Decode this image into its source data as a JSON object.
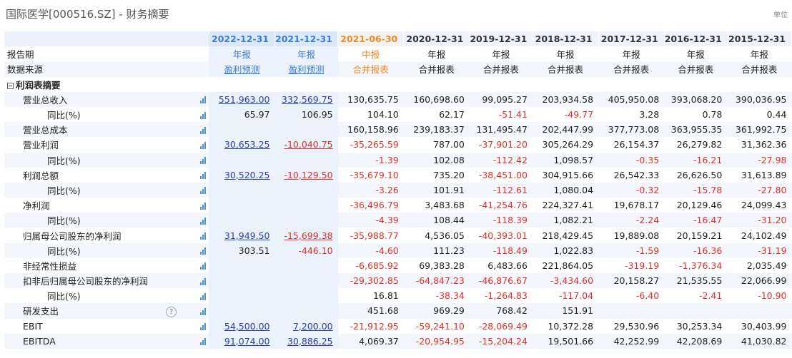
{
  "window": {
    "title": "国际医学[000516.SZ] - 财务摘要",
    "unit": "单位"
  },
  "header": {
    "columns": [
      "2022-12-31",
      "2021-12-31",
      "2021-06-30",
      "2020-12-31",
      "2019-12-31",
      "2018-12-31",
      "2017-12-31",
      "2016-12-31",
      "2015-12-31"
    ]
  },
  "meta_rows": [
    {
      "label": "报告期",
      "values": [
        "年报",
        "年报",
        "中报",
        "年报",
        "年报",
        "年报",
        "年报",
        "年报",
        "年报"
      ]
    },
    {
      "label": "数据来源",
      "values": [
        "盈利预测",
        "盈利预测",
        "合并报表",
        "合并报表",
        "合并报表",
        "合并报表",
        "合并报表",
        "合并报表",
        "合并报表"
      ]
    }
  ],
  "section": {
    "label": "利润表摘要",
    "collapse_symbol": "−"
  },
  "rows": [
    {
      "label": "营业总收入",
      "indent": 1,
      "values": [
        "551,963.00",
        "332,569.75",
        "130,635.75",
        "160,698.60",
        "99,095.27",
        "203,934.58",
        "405,950.08",
        "393,068.20",
        "390,036.95"
      ]
    },
    {
      "label": "同比(%)",
      "indent": 2,
      "values": [
        "65.97",
        "106.95",
        "104.10",
        "62.17",
        "-51.41",
        "-49.77",
        "3.28",
        "0.78",
        "0.44"
      ]
    },
    {
      "label": "营业总成本",
      "indent": 1,
      "values": [
        "",
        "",
        "160,158.96",
        "239,183.37",
        "131,495.47",
        "202,447.99",
        "377,773.08",
        "363,955.35",
        "361,992.75"
      ]
    },
    {
      "label": "营业利润",
      "indent": 1,
      "values": [
        "30,653.25",
        "-10,040.75",
        "-35,265.59",
        "787.00",
        "-37,901.20",
        "305,264.29",
        "26,154.37",
        "26,279.82",
        "31,362.36"
      ]
    },
    {
      "label": "同比(%)",
      "indent": 2,
      "values": [
        "",
        "",
        "-1.39",
        "102.08",
        "-112.42",
        "1,098.57",
        "-0.35",
        "-16.21",
        "-27.98"
      ]
    },
    {
      "label": "利润总额",
      "indent": 1,
      "values": [
        "30,520.25",
        "-10,129.50",
        "-35,679.10",
        "735.20",
        "-38,451.00",
        "304,915.66",
        "26,542.33",
        "26,626.50",
        "31,613.89"
      ]
    },
    {
      "label": "同比(%)",
      "indent": 2,
      "values": [
        "",
        "",
        "-3.26",
        "101.91",
        "-112.61",
        "1,080.04",
        "-0.32",
        "-15.78",
        "-27.80"
      ]
    },
    {
      "label": "净利润",
      "indent": 1,
      "values": [
        "",
        "",
        "-36,496.79",
        "3,483.68",
        "-41,254.76",
        "224,327.41",
        "19,678.17",
        "20,129.46",
        "24,099.43"
      ]
    },
    {
      "label": "同比(%)",
      "indent": 2,
      "values": [
        "",
        "",
        "-4.39",
        "108.44",
        "-118.39",
        "1,082.21",
        "-2.24",
        "-16.47",
        "-31.20"
      ]
    },
    {
      "label": "归属母公司股东的净利润",
      "indent": 1,
      "values": [
        "31,949.50",
        "-15,699.38",
        "-35,988.77",
        "4,536.05",
        "-40,393.01",
        "218,429.45",
        "19,889.08",
        "20,159.21",
        "24,102.49"
      ]
    },
    {
      "label": "同比(%)",
      "indent": 2,
      "values": [
        "303.51",
        "-446.10",
        "-4.60",
        "111.23",
        "-118.49",
        "1,022.83",
        "-1.59",
        "-16.36",
        "-31.19"
      ]
    },
    {
      "label": "非经常性损益",
      "indent": 1,
      "values": [
        "",
        "",
        "-6,685.92",
        "69,383.28",
        "6,483.66",
        "221,864.05",
        "-319.19",
        "-1,376.34",
        "2,035.49"
      ]
    },
    {
      "label": "扣非后归属母公司股东的净利润",
      "indent": 1,
      "values": [
        "",
        "",
        "-29,302.85",
        "-64,847.23",
        "-46,876.67",
        "-3,434.60",
        "20,158.27",
        "21,535.55",
        "22,066.99"
      ]
    },
    {
      "label": "同比(%)",
      "indent": 2,
      "values": [
        "",
        "",
        "16.81",
        "-38.34",
        "-1,264.83",
        "-117.04",
        "-6.40",
        "-2.41",
        "-10.90"
      ]
    },
    {
      "label": "研发支出",
      "indent": 1,
      "help": "?",
      "values": [
        "",
        "",
        "451.68",
        "969.29",
        "768.42",
        "151.91",
        "",
        "",
        ""
      ]
    },
    {
      "label": "EBIT",
      "indent": 1,
      "values": [
        "54,500.00",
        "7,200.00",
        "-21,912.95",
        "-59,241.10",
        "-28,069.49",
        "10,372.28",
        "29,530.96",
        "30,253.34",
        "30,403.99"
      ]
    },
    {
      "label": "EBITDA",
      "indent": 1,
      "values": [
        "91,074.00",
        "30,886.25",
        "4,069.37",
        "-20,954.95",
        "-15,204.24",
        "19,501.66",
        "42,252.99",
        "42,208.69",
        "41,030.82"
      ]
    }
  ],
  "colors": {
    "forecast_blue": "#3d7bd6",
    "interim_orange": "#f08a24",
    "negative_red": "#e0302a",
    "link_navy": "#2a3fa8"
  }
}
